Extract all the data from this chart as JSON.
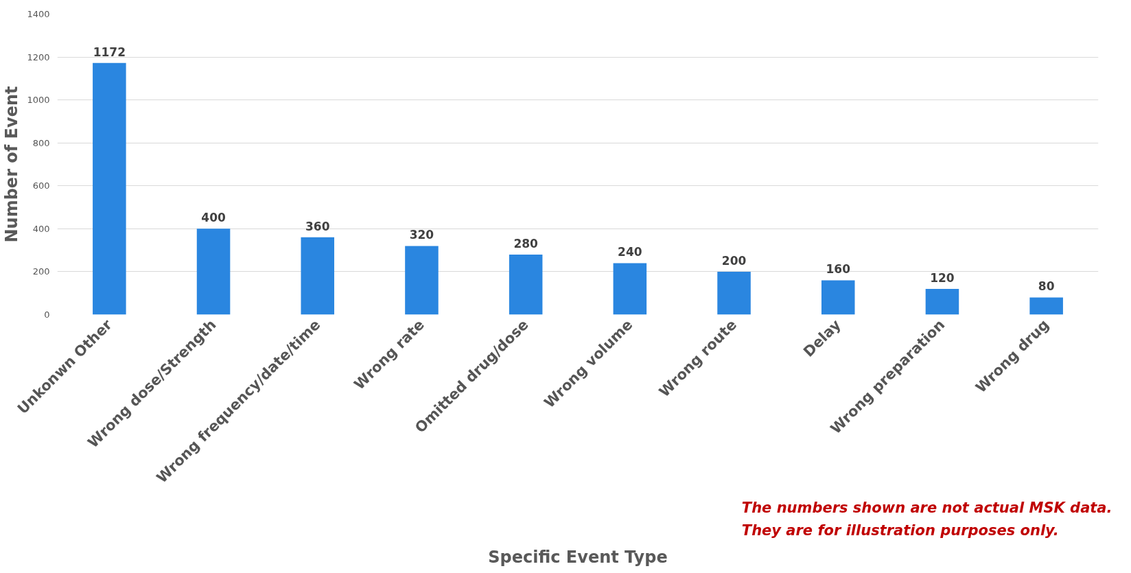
{
  "chart_data": {
    "type": "bar",
    "xlabel": "Specific Event Type",
    "ylabel": "Number of Event",
    "categories": [
      "Unkonwn Other",
      "Wrong dose/Strength",
      "Wrong frequency/date/time",
      "Wrong rate",
      "Omitted drug/dose",
      "Wrong volume",
      "Wrong route",
      "Delay",
      "Wrong preparation",
      "Wrong drug"
    ],
    "values": [
      1172,
      400,
      360,
      320,
      280,
      240,
      200,
      160,
      120,
      80
    ],
    "color": "#2a86e0",
    "ylim": [
      0,
      1400
    ],
    "yticks": [
      0,
      200,
      400,
      600,
      800,
      1000,
      1200,
      1400
    ],
    "grid": "y",
    "data_labels": true,
    "annotations": [
      "The numbers shown are not actual MSK data.\nThey are for illustration purposes only."
    ]
  }
}
